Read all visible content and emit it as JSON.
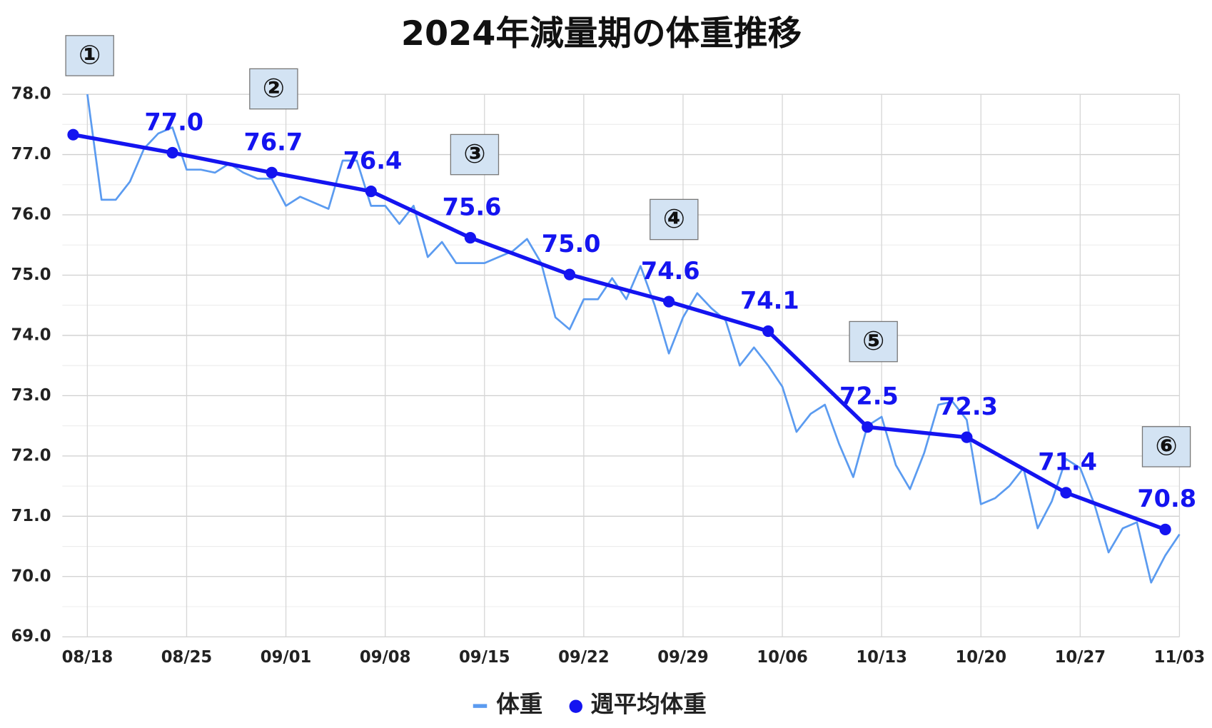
{
  "chart_data": {
    "type": "line",
    "title": "2024年減量期の体重推移",
    "ylim": [
      69,
      78
    ],
    "yticks": [
      {
        "value": 69,
        "label": "69.0"
      },
      {
        "value": 70,
        "label": "70.0"
      },
      {
        "value": 71,
        "label": "71.0"
      },
      {
        "value": 72,
        "label": "72.0"
      },
      {
        "value": 73,
        "label": "73.0"
      },
      {
        "value": 74,
        "label": "74.0"
      },
      {
        "value": 75,
        "label": "75.0"
      },
      {
        "value": 76,
        "label": "76.0"
      },
      {
        "value": 77,
        "label": "77.0"
      },
      {
        "value": 78,
        "label": "78.0"
      }
    ],
    "minor_yticks": [
      69.5,
      70.5,
      71.5,
      72.5,
      73.5,
      74.5,
      75.5,
      76.5,
      77.5
    ],
    "xlim": [
      "08/17",
      "11/03"
    ],
    "xticks": [
      "08/18",
      "08/25",
      "09/01",
      "09/08",
      "09/15",
      "09/22",
      "09/29",
      "10/06",
      "10/13",
      "10/20",
      "10/27",
      "11/03"
    ],
    "grid": true,
    "legend": "bottom",
    "annotations": [
      "①",
      "②",
      "③",
      "④",
      "⑤",
      "⑥"
    ],
    "series": [
      {
        "name": "体重",
        "color": "#5b9bf0",
        "x": [
          "08/18",
          "08/19",
          "08/20",
          "08/21",
          "08/22",
          "08/23",
          "08/24",
          "08/25",
          "08/26",
          "08/27",
          "08/28",
          "08/29",
          "08/30",
          "08/31",
          "09/01",
          "09/02",
          "09/03",
          "09/04",
          "09/05",
          "09/06",
          "09/07",
          "09/08",
          "09/09",
          "09/10",
          "09/11",
          "09/12",
          "09/13",
          "09/14",
          "09/15",
          "09/16",
          "09/17",
          "09/18",
          "09/19",
          "09/20",
          "09/21",
          "09/22",
          "09/23",
          "09/24",
          "09/25",
          "09/26",
          "09/27",
          "09/28",
          "09/29",
          "09/30",
          "10/01",
          "10/02",
          "10/03",
          "10/04",
          "10/05",
          "10/06",
          "10/07",
          "10/08",
          "10/09",
          "10/10",
          "10/11",
          "10/12",
          "10/13",
          "10/14",
          "10/15",
          "10/16",
          "10/17",
          "10/18",
          "10/19",
          "10/20",
          "10/21",
          "10/22",
          "10/23",
          "10/24",
          "10/25",
          "10/26",
          "10/27",
          "10/28",
          "10/29",
          "10/30",
          "10/31",
          "11/01",
          "11/02",
          "11/03"
        ],
        "values": [
          78.0,
          76.25,
          76.25,
          76.55,
          77.1,
          77.35,
          77.45,
          76.75,
          76.75,
          76.7,
          76.85,
          76.7,
          76.6,
          76.6,
          76.15,
          76.3,
          76.2,
          76.1,
          76.9,
          76.9,
          76.15,
          76.15,
          75.85,
          76.15,
          75.3,
          75.55,
          75.2,
          75.2,
          75.2,
          75.3,
          75.4,
          75.6,
          75.2,
          74.3,
          74.1,
          74.6,
          74.6,
          74.95,
          74.6,
          75.15,
          74.5,
          73.7,
          74.3,
          74.7,
          74.45,
          74.25,
          73.5,
          73.8,
          73.5,
          73.15,
          72.4,
          72.7,
          72.85,
          72.2,
          71.65,
          72.5,
          72.65,
          71.85,
          71.45,
          72.05,
          72.85,
          72.9,
          72.6,
          71.2,
          71.3,
          71.5,
          71.8,
          70.8,
          71.25,
          71.95,
          71.8,
          71.2,
          70.4,
          70.8,
          70.9,
          69.9,
          70.35,
          70.7
        ]
      },
      {
        "name": "週平均体重",
        "color": "#1414f0",
        "x": [
          "08/17",
          "08/24",
          "08/31",
          "09/07",
          "09/14",
          "09/21",
          "09/28",
          "10/05",
          "10/12",
          "10/19",
          "10/26",
          "11/02"
        ],
        "values": [
          77.33,
          77.03,
          76.7,
          76.39,
          75.62,
          75.01,
          74.56,
          74.07,
          72.48,
          72.31,
          71.39,
          70.78
        ],
        "value_labels": [
          null,
          "77.0",
          "76.7",
          "76.4",
          "75.6",
          "75.0",
          "74.6",
          "74.1",
          "72.5",
          "72.3",
          "71.4",
          "70.8"
        ]
      }
    ]
  }
}
